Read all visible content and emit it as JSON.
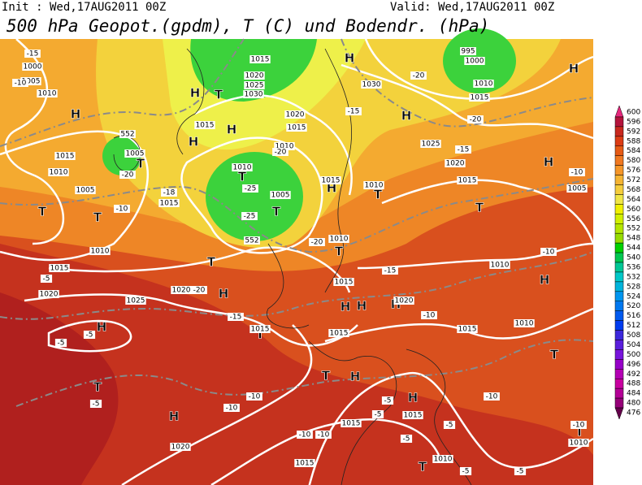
{
  "header": {
    "init": "Init : Wed,17AUG2011 00Z",
    "valid": "Valid: Wed,17AUG2011 00Z",
    "title": "500 hPa Geopot.(gpdm), T (C) und Bodendr. (hPa)"
  },
  "colorbar": {
    "levels": [
      600,
      596,
      592,
      588,
      584,
      580,
      576,
      572,
      568,
      564,
      560,
      556,
      552,
      548,
      544,
      540,
      536,
      532,
      528,
      524,
      520,
      516,
      512,
      508,
      504,
      500,
      496,
      492,
      488,
      484,
      480,
      476
    ],
    "colors": [
      "#e6287d",
      "#b4143c",
      "#c8281e",
      "#dc3c14",
      "#e65a14",
      "#f07820",
      "#f59628",
      "#f5b432",
      "#f5cd3c",
      "#f0e646",
      "#f0f000",
      "#d2f000",
      "#b4e600",
      "#96dc00",
      "#00d200",
      "#00c850",
      "#00c896",
      "#00c8c8",
      "#00b4dc",
      "#0096f0",
      "#0078f0",
      "#005af0",
      "#003cf0",
      "#3c28dc",
      "#5a1edc",
      "#7814dc",
      "#9600c8",
      "#b400b4",
      "#c800a0",
      "#b40096",
      "#960078",
      "#64004b"
    ]
  },
  "labels": [
    "H",
    "H",
    "H",
    "H",
    "H",
    "H",
    "H",
    "H",
    "H",
    "H",
    "H",
    "H",
    "H",
    "H",
    "H",
    "H",
    "H",
    "H",
    "T",
    "T",
    "T",
    "T",
    "T",
    "T",
    "T",
    "T",
    "T",
    "T",
    "T",
    "T",
    "T",
    "T",
    "T",
    "T",
    "1000",
    "1005",
    "1010",
    "1015",
    "1020",
    "1025",
    "1030",
    "1015",
    "1020",
    "1015",
    "1030",
    "1010",
    "1005",
    "1015",
    "1010",
    "1005",
    "1015",
    "1010",
    "1005",
    "1015",
    "1010",
    "1025",
    "1020",
    "1015",
    "1010",
    "1015",
    "1010",
    "1015",
    "1020",
    "1025",
    "1020",
    "1015",
    "1015",
    "1020",
    "1015",
    "1010",
    "1010",
    "1005",
    "995",
    "1000",
    "1010",
    "1015",
    "1015",
    "1015",
    "1010",
    "1020",
    "1015",
    "1010",
    "-15",
    "-10",
    "-20",
    "-15",
    "-20",
    "-15",
    "-20",
    "-20",
    "-25",
    "-25",
    "-18",
    "-10",
    "-20",
    "-15",
    "-5",
    "-20",
    "-15",
    "-5",
    "-5",
    "-10",
    "-10",
    "-10",
    "-5",
    "-10",
    "-10",
    "-5",
    "-5",
    "-10",
    "-5",
    "-5",
    "-10",
    "-10",
    "-5",
    "-5",
    "-10",
    "552",
    "552"
  ]
}
